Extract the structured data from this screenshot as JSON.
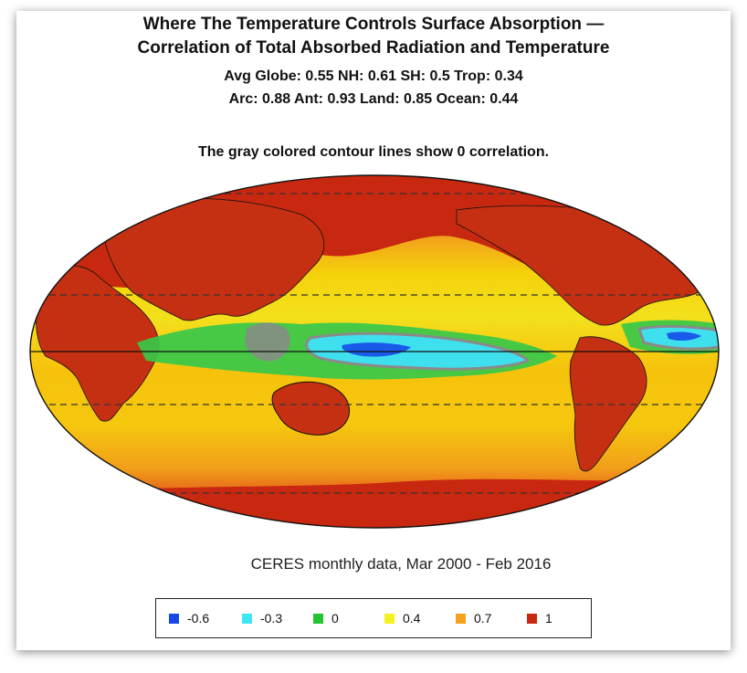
{
  "title_line1": "Where The Temperature Controls Surface Absorption —",
  "title_line2": "Correlation of Total Absorbed Radiation and Temperature",
  "stats_line1": "Avg Globe: 0.55  NH: 0.61  SH: 0.5  Trop: 0.34",
  "stats_line2": "Arc: 0.88  Ant: 0.93  Land: 0.85 Ocean: 0.44",
  "note": "The gray colored contour lines show 0 correlation.",
  "caption": "CERES monthly data, Mar 2000 - Feb 2016",
  "legend": [
    {
      "label": "-0.6",
      "color": "#1646e6"
    },
    {
      "label": "-0.3",
      "color": "#3ee6f2"
    },
    {
      "label": "0",
      "color": "#22c432"
    },
    {
      "label": "0.4",
      "color": "#f2f21e"
    },
    {
      "label": "0.7",
      "color": "#f5a21e"
    },
    {
      "label": "1",
      "color": "#c8280f"
    }
  ],
  "colors": {
    "ocean_base": "#f4d200",
    "land": "#c53012",
    "polar": "#cf3a12",
    "subtropic_orange": "#f0a01a",
    "tropic_green": "#37c84a",
    "negative_cyan": "#3fe0ee",
    "negative_blue": "#1a5ae8",
    "zero_contour": "#8a8a8a"
  }
}
